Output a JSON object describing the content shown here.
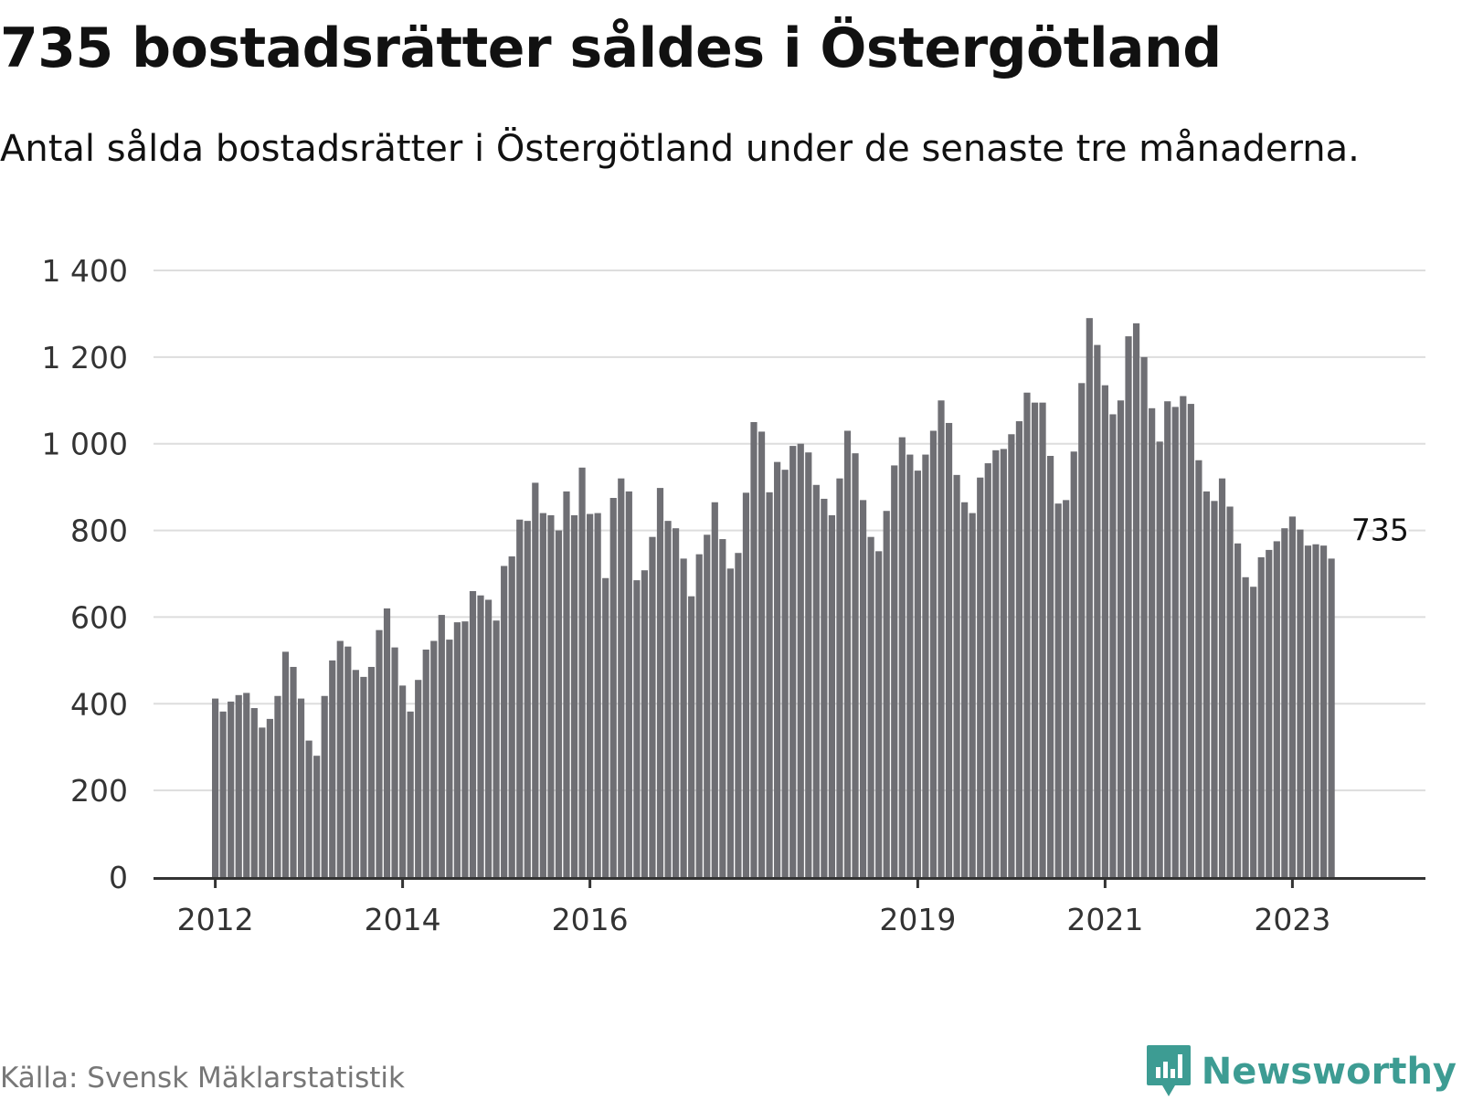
{
  "header": {
    "title": "735 bostadsrätter såldes i Östergötland",
    "subtitle": "Antal sålda bostadsrätter i Östergötland under de senaste tre månaderna."
  },
  "footer": {
    "source": "Källa: Svensk Mäklarstatistik",
    "brand": "Newsworthy",
    "brand_icon": "bar-chart-speech-bubble-icon"
  },
  "colors": {
    "bar": "#6f6f74",
    "highlight": "#1aa39a",
    "brand": "#3d9c93"
  },
  "chart_data": {
    "type": "bar",
    "title": "735 bostadsrätter såldes i Östergötland",
    "subtitle": "Antal sålda bostadsrätter i Östergötland under de senaste tre månaderna.",
    "xlabel": "",
    "ylabel": "",
    "ylim": [
      0,
      1400
    ],
    "yticks": [
      0,
      200,
      400,
      600,
      800,
      1000,
      1200,
      1400
    ],
    "ytick_labels": [
      "0",
      "200",
      "400",
      "600",
      "800",
      "1 000",
      "1 200",
      "1 400"
    ],
    "grid": true,
    "x_start": "2012-01",
    "frequency": "monthly",
    "xtick_labels": [
      {
        "label": "2012",
        "period": "2012-01"
      },
      {
        "label": "2014",
        "period": "2014-01"
      },
      {
        "label": "2016",
        "period": "2016-01"
      },
      {
        "label": "2019",
        "period": "2019-07"
      },
      {
        "label": "2021",
        "period": "2021-07"
      },
      {
        "label": "2023",
        "period": "2023-07"
      }
    ],
    "highlight": {
      "period": "2024-06",
      "value": 735,
      "label": "735"
    },
    "values": [
      412,
      382,
      405,
      420,
      425,
      390,
      345,
      365,
      418,
      520,
      485,
      412,
      315,
      280,
      418,
      500,
      545,
      532,
      478,
      462,
      485,
      570,
      620,
      530,
      442,
      382,
      455,
      525,
      545,
      605,
      548,
      588,
      590,
      660,
      650,
      640,
      592,
      718,
      740,
      825,
      822,
      910,
      840,
      835,
      800,
      890,
      835,
      945,
      838,
      840,
      690,
      875,
      920,
      890,
      685,
      708,
      785,
      898,
      822,
      805,
      735,
      648,
      745,
      790,
      865,
      780,
      712,
      748,
      887,
      1050,
      1028,
      888,
      958,
      940,
      995,
      1000,
      980,
      905,
      873,
      835,
      920,
      1030,
      978,
      870,
      785,
      752,
      845,
      950,
      1015,
      975,
      938,
      975,
      1030,
      1100,
      1048,
      928,
      865,
      840,
      922,
      955,
      985,
      988,
      1022,
      1052,
      1118,
      1095,
      1095,
      972,
      862,
      870,
      982,
      1140,
      1290,
      1228,
      1135,
      1068,
      1100,
      1248,
      1278,
      1200,
      1082,
      1005,
      1098,
      1085,
      1110,
      1092,
      962,
      890,
      868,
      920,
      855,
      770,
      692,
      670,
      738,
      755,
      775,
      805,
      832,
      802,
      765,
      768,
      765,
      735
    ]
  }
}
